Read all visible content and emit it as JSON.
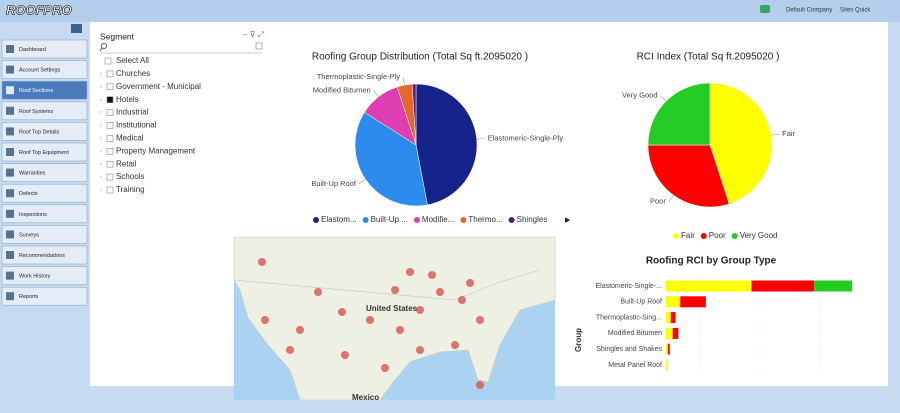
{
  "header": {
    "logo": "ROOFPRO",
    "company": "Default Company",
    "sites": "Sites Quick"
  },
  "sidebar": {
    "items": [
      "Dashboard",
      "Account Settings",
      "Roof Sections",
      "Roof Systems",
      "Roof Top Details",
      "Roof Top Equipment",
      "Warranties",
      "Defects",
      "Inspections",
      "Surveys",
      "Recommendations",
      "Work History",
      "Reports"
    ]
  },
  "segment": {
    "title": "Segment",
    "items": [
      "Select All",
      "Churches",
      "Government - Municipal",
      "Hotels",
      "Industrial",
      "Institutional",
      "Medical",
      "Property Management",
      "Retail",
      "Schools",
      "Training"
    ]
  },
  "chart_data": [
    {
      "type": "pie",
      "title": "Roofing Group Distribution (Total Sq ft.2095020 )",
      "categories": [
        "Elastomeric-Single-Ply",
        "Built-Up Roof",
        "Modified Bitumen",
        "Thermoplastic-Single-Ply",
        "Shingles"
      ],
      "values": [
        47,
        37,
        11,
        4,
        1
      ],
      "colors": [
        "#16238a",
        "#2b8cee",
        "#e03fb4",
        "#e4682a",
        "#5a1a78"
      ],
      "labeled": [
        true,
        true,
        true,
        true,
        false
      ],
      "legend_labels": [
        "Elastom...",
        "Built-Up ...",
        "Modifie...",
        "Thermo...",
        "Shingles"
      ]
    },
    {
      "type": "pie",
      "title": "RCI Index (Total Sq ft.2095020 )",
      "categories": [
        "Fair",
        "Poor",
        "Very Good"
      ],
      "values": [
        45,
        30,
        25
      ],
      "colors": [
        "#ffff00",
        "#ff0000",
        "#22cc22"
      ],
      "labeled": [
        true,
        true,
        true
      ],
      "legend_labels": [
        "Fair",
        "Poor",
        "Very Good"
      ]
    },
    {
      "type": "bar",
      "orientation": "horizontal",
      "stacked": true,
      "title": "Roofing RCI by Group Type",
      "y_label": "Group",
      "categories": [
        "Elastomeric-Single-...",
        "Built-Up Roof",
        "Thermoplastic-Sing...",
        "Modified Bitumen",
        "Shingles and Shakes",
        "Metal Panel Roof"
      ],
      "xlim": [
        0,
        1000000
      ],
      "series": [
        {
          "name": "Fair",
          "color": "#ffff00",
          "values": [
            450000,
            75000,
            25000,
            35000,
            10000,
            5000
          ]
        },
        {
          "name": "Poor",
          "color": "#ff0000",
          "values": [
            330000,
            135000,
            25000,
            30000,
            10000,
            0
          ]
        },
        {
          "name": "Very Good",
          "color": "#22cc22",
          "values": [
            200000,
            0,
            0,
            0,
            0,
            0
          ]
        }
      ]
    }
  ],
  "map": {
    "labels": [
      "United States",
      "Mexico"
    ]
  }
}
